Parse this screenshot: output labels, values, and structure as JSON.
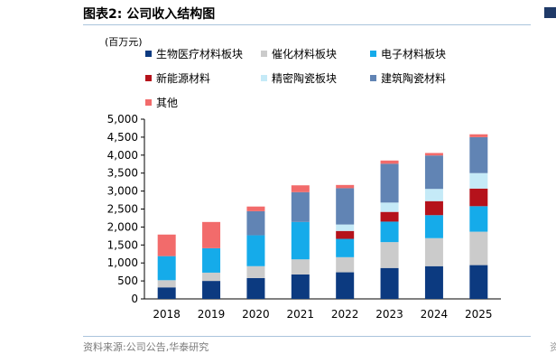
{
  "figure": {
    "title": "图表2:  公司收入结构图",
    "source": "资料来源:公司公告,华泰研究",
    "edge_glyph": "资"
  },
  "chart_data": {
    "type": "bar",
    "stacked": true,
    "unit_label": "(百万元)",
    "categories": [
      "2018",
      "2019",
      "2020",
      "2021",
      "2022",
      "2023",
      "2024",
      "2025"
    ],
    "ylim": [
      0,
      5000
    ],
    "yticks": [
      0,
      500,
      1000,
      1500,
      2000,
      2500,
      3000,
      3500,
      4000,
      4500,
      5000
    ],
    "ytick_labels": [
      "0",
      "500",
      "1,000",
      "1,500",
      "2,000",
      "2,500",
      "3,000",
      "3,500",
      "4,000",
      "4,500",
      "5,000"
    ],
    "grid": false,
    "legend_position": "top-left",
    "series": [
      {
        "name": "生物医疗材料板块",
        "color": "#0c3a80",
        "values": [
          320,
          500,
          580,
          680,
          740,
          860,
          910,
          940
        ]
      },
      {
        "name": "催化材料板块",
        "color": "#cbcbcb",
        "values": [
          200,
          230,
          330,
          420,
          420,
          720,
          780,
          930
        ]
      },
      {
        "name": "电子材料板块",
        "color": "#15abea",
        "values": [
          670,
          680,
          860,
          1040,
          510,
          570,
          640,
          710
        ]
      },
      {
        "name": "新能源材料",
        "color": "#b5121b",
        "values": [
          0,
          0,
          0,
          0,
          220,
          270,
          390,
          490
        ]
      },
      {
        "name": "精密陶瓷板块",
        "color": "#c5eaf7",
        "values": [
          0,
          0,
          0,
          0,
          180,
          260,
          340,
          430
        ]
      },
      {
        "name": "建筑陶瓷材料",
        "color": "#6184b4",
        "values": [
          0,
          0,
          670,
          830,
          1010,
          1080,
          930,
          1000
        ]
      },
      {
        "name": "其他",
        "color": "#f26b6b",
        "values": [
          600,
          730,
          130,
          190,
          90,
          90,
          70,
          80
        ]
      }
    ]
  }
}
